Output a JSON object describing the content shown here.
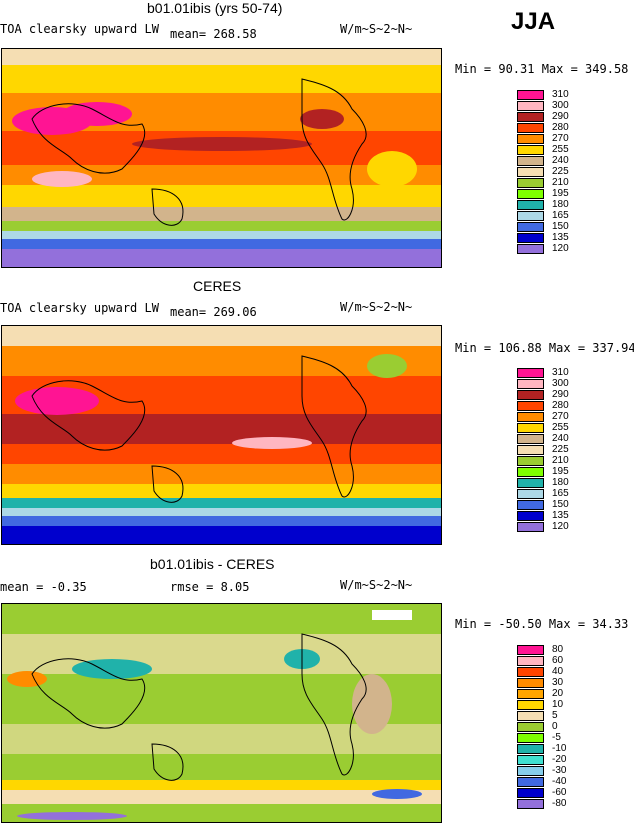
{
  "season": "JJA",
  "panels": [
    {
      "title": "b01.01ibis (yrs 50-74)",
      "variable": "TOA clearsky upward LW",
      "stat": "mean=  268.58",
      "units": "W/m~S~2~N~",
      "minmax": "Min =  90.31 Max = 349.58",
      "levels": [
        "310",
        "300",
        "290",
        "280",
        "270",
        "255",
        "240",
        "225",
        "210",
        "195",
        "180",
        "165",
        "150",
        "135",
        "120"
      ],
      "colors": [
        "#ff1493",
        "#ffb6c1",
        "#b22222",
        "#ff4500",
        "#ff8c00",
        "#ffd700",
        "#d2b48c",
        "#f5deb3",
        "#9acd32",
        "#7fff00",
        "#20b2aa",
        "#add8e6",
        "#4169e1",
        "#0000cd",
        "#9370db"
      ]
    },
    {
      "title": "CERES",
      "variable": "TOA clearsky upward LW",
      "stat": "mean=  269.06",
      "units": "W/m~S~2~N~",
      "minmax": "Min = 106.88 Max = 337.94",
      "levels": [
        "310",
        "300",
        "290",
        "280",
        "270",
        "255",
        "240",
        "225",
        "210",
        "195",
        "180",
        "165",
        "150",
        "135",
        "120"
      ],
      "colors": [
        "#ff1493",
        "#ffb6c1",
        "#b22222",
        "#ff4500",
        "#ff8c00",
        "#ffd700",
        "#d2b48c",
        "#f5deb3",
        "#9acd32",
        "#7fff00",
        "#20b2aa",
        "#add8e6",
        "#4169e1",
        "#0000cd",
        "#9370db"
      ]
    },
    {
      "title": "b01.01ibis - CERES",
      "variable": "mean =   -0.35",
      "stat": "rmse =    8.05",
      "units": "W/m~S~2~N~",
      "minmax": "Min = -50.50 Max =  34.33",
      "levels": [
        "80",
        "60",
        "40",
        "30",
        "20",
        "10",
        "5",
        "0",
        "-5",
        "-10",
        "-20",
        "-30",
        "-40",
        "-60",
        "-80"
      ],
      "colors": [
        "#ff1493",
        "#ffb6c1",
        "#ff4500",
        "#ff8c00",
        "#ffa500",
        "#ffd700",
        "#f5deb3",
        "#9acd32",
        "#7fff00",
        "#20b2aa",
        "#40e0d0",
        "#87ceeb",
        "#4169e1",
        "#0000cd",
        "#9370db"
      ]
    }
  ]
}
